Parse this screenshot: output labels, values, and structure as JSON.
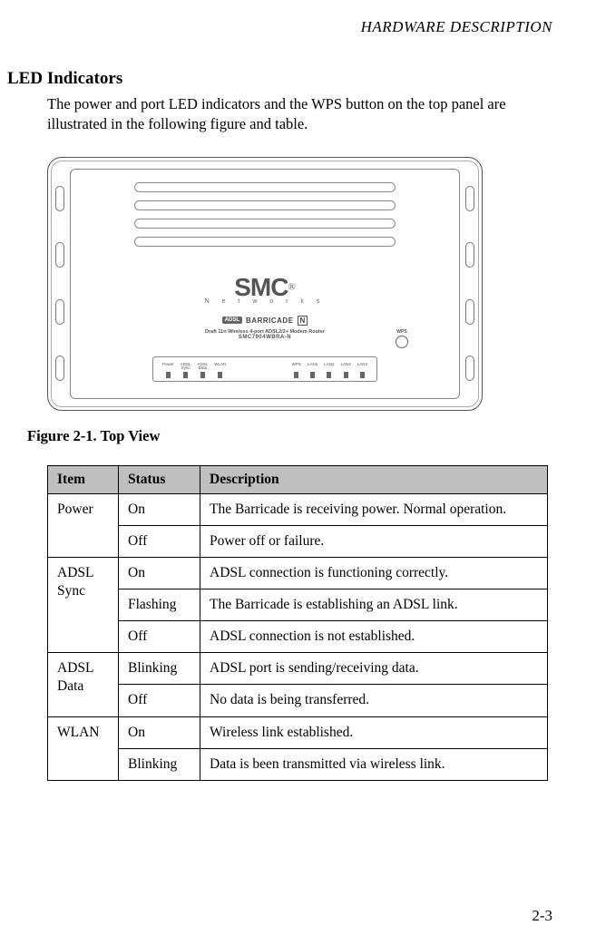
{
  "header": {
    "chapter": "HARDWARE DESCRIPTION"
  },
  "section": {
    "title": "LED Indicators",
    "body": "The power and port LED indicators and the WPS button on the top panel are illustrated in the following figure and table."
  },
  "device": {
    "logo_main": "SMC",
    "logo_reg": "®",
    "logo_sub": "N e t w o r k s",
    "adsl_tag": "ADSL",
    "barricade": "BARRICADE",
    "n_badge": "N",
    "model_line1": "Draft 11n Wireless 4-port ADSL2/2+ Modem Router",
    "model_line2": "SMC7904WBRA-N",
    "wps_label": "WPS",
    "leds_left": [
      {
        "label": "Power"
      },
      {
        "label": "ADSL\nSync"
      },
      {
        "label": "ADSL\nData"
      },
      {
        "label": "WLAN"
      }
    ],
    "leds_right": [
      {
        "label": "WPS"
      },
      {
        "label": "LAN1"
      },
      {
        "label": "LAN2"
      },
      {
        "label": "LAN3"
      },
      {
        "label": "LAN4"
      }
    ]
  },
  "figure_caption": "Figure 2-1.  Top View",
  "table": {
    "headers": {
      "item": "Item",
      "status": "Status",
      "description": "Description"
    },
    "rows": [
      {
        "item": "Power",
        "item_rowspan": 2,
        "status": "On",
        "description": "The Barricade is receiving power. Normal operation."
      },
      {
        "status": "Off",
        "description": "Power off or failure."
      },
      {
        "item": "ADSL Sync",
        "item_rowspan": 3,
        "status": "On",
        "description": "ADSL connection is functioning correctly."
      },
      {
        "status": "Flashing",
        "description": "The Barricade is establishing an ADSL link."
      },
      {
        "status": "Off",
        "description": "ADSL connection is not established."
      },
      {
        "item": "ADSL Data",
        "item_rowspan": 2,
        "status": "Blinking",
        "description": "ADSL port is sending/receiving data."
      },
      {
        "status": "Off",
        "description": "No data is being transferred."
      },
      {
        "item": "WLAN",
        "item_rowspan": 2,
        "status": "On",
        "description": "Wireless link established."
      },
      {
        "status": "Blinking",
        "description": "Data is been transmitted via wireless link."
      }
    ]
  },
  "page_number": "2-3",
  "colors": {
    "header_bg": "#bfbfbf",
    "border": "#000000",
    "text": "#000000",
    "device_line": "#888888"
  }
}
